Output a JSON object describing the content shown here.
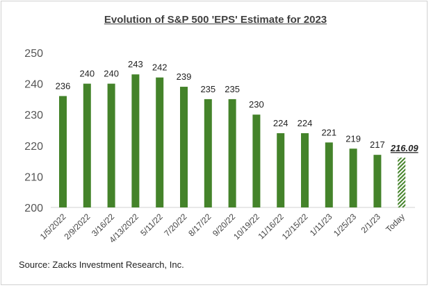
{
  "chart_data": {
    "type": "bar",
    "title": "Evolution of S&P 500 'EPS' Estimate for 2023",
    "categories": [
      "1/5/2022",
      "2/9/2022",
      "3/16/22",
      "4/13/2022",
      "5/11/22",
      "7/20/22",
      "8/17/22",
      "9/20/22",
      "10/19/22",
      "11/16/22",
      "12/15/22",
      "1/11/23",
      "1/25/23",
      "2/1/23",
      "Today"
    ],
    "values": [
      236,
      240,
      240,
      243,
      242,
      239,
      235,
      235,
      230,
      224,
      224,
      221,
      219,
      217,
      216.09
    ],
    "data_labels": [
      "236",
      "240",
      "240",
      "243",
      "242",
      "239",
      "235",
      "235",
      "230",
      "224",
      "224",
      "221",
      "219",
      "217",
      "216.09"
    ],
    "highlight_last": true,
    "ylim": [
      200,
      250
    ],
    "yticks": [
      200,
      210,
      220,
      230,
      240,
      250
    ],
    "xlabel": "",
    "ylabel": "",
    "grid": false,
    "colors": {
      "bar": "#44832a",
      "hatch": "#44832a"
    }
  },
  "source": "Source: Zacks Investment Research, Inc."
}
